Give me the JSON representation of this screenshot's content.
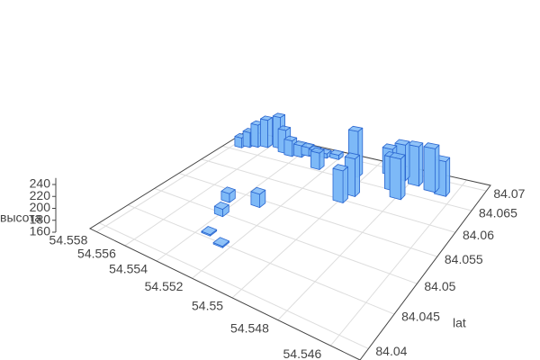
{
  "chart_data": {
    "type": "bar3d",
    "zlabel": "высота",
    "ylabel": "lat",
    "x": [
      54.5576,
      54.5572,
      54.5568,
      54.5563,
      54.5556,
      54.555,
      54.5545,
      54.554,
      54.5537,
      54.5533,
      54.5528,
      54.5522,
      54.5525,
      54.5505,
      54.5465,
      54.547,
      54.5478,
      54.5485,
      54.5492,
      54.5485,
      54.548,
      54.5498,
      54.55,
      54.5545,
      54.553,
      54.554,
      54.5535,
      54.5525
    ],
    "y": [
      84.0665,
      84.0672,
      84.0678,
      84.0684,
      84.069,
      84.068,
      84.0676,
      84.068,
      84.0688,
      84.069,
      84.0694,
      84.0698,
      84.066,
      84.0665,
      84.0672,
      84.0675,
      84.068,
      84.0685,
      84.069,
      84.0655,
      84.064,
      84.062,
      84.06,
      84.053,
      84.054,
      84.05,
      84.046,
      84.045
    ],
    "values": [
      180,
      190,
      205,
      215,
      222,
      205,
      190,
      182,
      176,
      172,
      168,
      168,
      190,
      240,
      215,
      230,
      225,
      220,
      205,
      215,
      225,
      222,
      212,
      175,
      182,
      172,
      162,
      162
    ],
    "color": "#7db9f7",
    "xlim": [
      54.545,
      54.5585
    ],
    "ylim": [
      84.0385,
      84.0715
    ],
    "zlim": [
      160,
      245
    ],
    "xticks": [
      54.546,
      54.548,
      54.55,
      54.552,
      54.554,
      54.556,
      54.558
    ],
    "yticks": [
      84.04,
      84.045,
      84.05,
      84.055,
      84.06,
      84.065,
      84.07
    ],
    "zticks": [
      160,
      180,
      200,
      220,
      240
    ],
    "grid": true
  }
}
